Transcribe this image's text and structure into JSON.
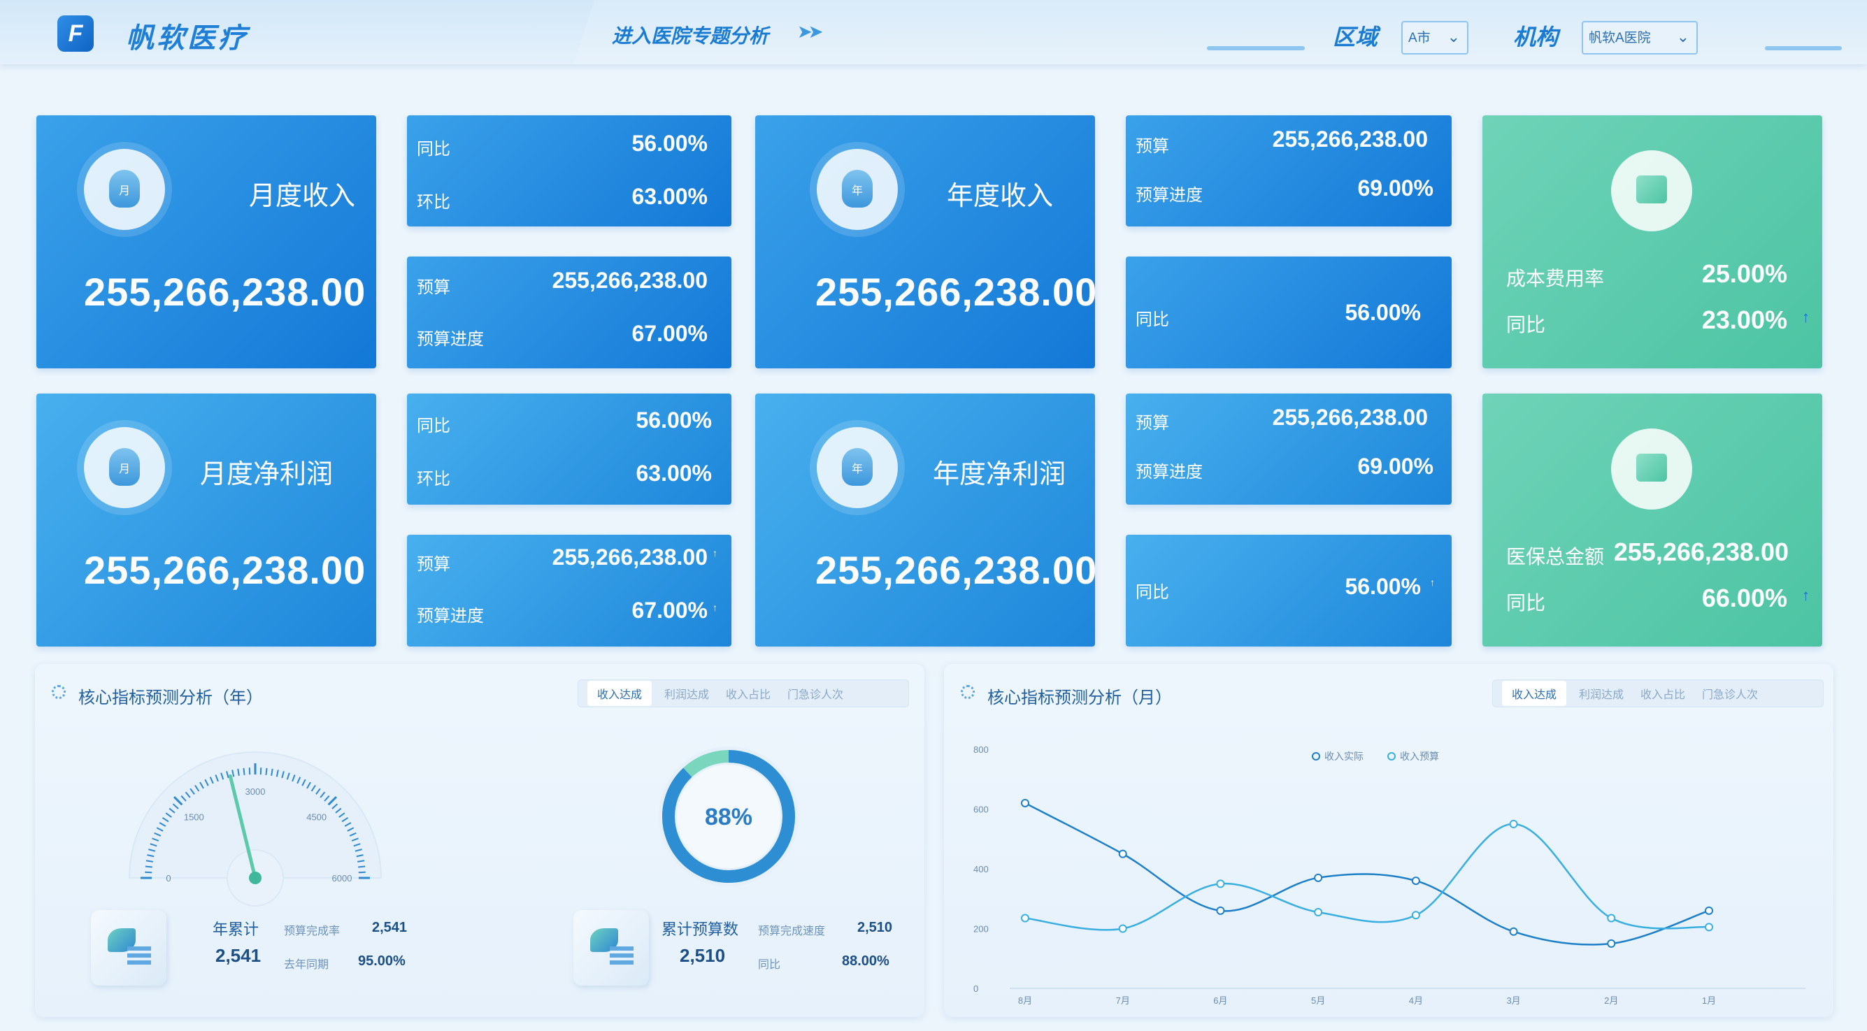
{
  "header": {
    "brand": "帆软医疗",
    "logo_letter": "F",
    "enter_link": "进入医院专题分析",
    "region_label": "区域",
    "region_value": "A市",
    "org_label": "机构",
    "org_value": "帆软A医院"
  },
  "cards": {
    "monthly_income": {
      "title": "月度收入",
      "icon_char": "月",
      "value": "255,266,238.00"
    },
    "monthly_income_cmp": {
      "yoy_label": "同比",
      "yoy": "56.00%",
      "mom_label": "环比",
      "mom": "63.00%"
    },
    "monthly_income_budget": {
      "budget_label": "预算",
      "budget": "255,266,238.00",
      "progress_label": "预算进度",
      "progress": "67.00%"
    },
    "annual_income": {
      "title": "年度收入",
      "icon_char": "年",
      "value": "255,266,238.00"
    },
    "annual_income_budget": {
      "budget_label": "预算",
      "budget": "255,266,238.00",
      "progress_label": "预算进度",
      "progress": "69.00%"
    },
    "annual_income_yoy": {
      "yoy_label": "同比",
      "yoy": "56.00%"
    },
    "cost_rate": {
      "label": "成本费用率",
      "value": "25.00%",
      "yoy_label": "同比",
      "yoy": "23.00%"
    },
    "monthly_profit": {
      "title": "月度净利润",
      "icon_char": "月",
      "value": "255,266,238.00"
    },
    "monthly_profit_cmp": {
      "yoy_label": "同比",
      "yoy": "56.00%",
      "mom_label": "环比",
      "mom": "63.00%"
    },
    "monthly_profit_budget": {
      "budget_label": "预算",
      "budget": "255,266,238.00",
      "progress_label": "预算进度",
      "progress": "67.00%"
    },
    "annual_profit": {
      "title": "年度净利润",
      "icon_char": "年",
      "value": "255,266,238.00"
    },
    "annual_profit_budget": {
      "budget_label": "预算",
      "budget": "255,266,238.00",
      "progress_label": "预算进度",
      "progress": "69.00%"
    },
    "annual_profit_yoy": {
      "yoy_label": "同比",
      "yoy": "56.00%"
    },
    "insurance": {
      "label": "医保总金额",
      "value": "255,266,238.00",
      "yoy_label": "同比",
      "yoy": "66.00%"
    },
    "up_arrow": "↑"
  },
  "panel_year": {
    "title": "核心指标预测分析（年）",
    "tabs": [
      "收入达成",
      "利润达成",
      "收入占比",
      "门急诊人次"
    ],
    "active_tab": 0,
    "gauge": {
      "ticks": [
        "0",
        "1500",
        "3000",
        "4500",
        "6000"
      ],
      "value": 2541,
      "max": 6000
    },
    "donut": {
      "value": 0.88,
      "label": "88%"
    },
    "kpi_left": {
      "label": "年累计",
      "value": "2,541",
      "sub1_label": "预算完成率",
      "sub1_value": "2,541",
      "sub2_label": "去年同期",
      "sub2_value": "95.00%"
    },
    "kpi_right": {
      "label": "累计预算数",
      "value": "2,510",
      "sub1_label": "预算完成速度",
      "sub1_value": "2,510",
      "sub2_label": "同比",
      "sub2_value": "88.00%"
    }
  },
  "panel_month": {
    "title": "核心指标预测分析（月）",
    "tabs": [
      "收入达成",
      "利润达成",
      "收入占比",
      "门急诊人次"
    ],
    "active_tab": 0
  },
  "chart_data": {
    "type": "line",
    "categories": [
      "8月",
      "7月",
      "6月",
      "5月",
      "4月",
      "3月",
      "2月",
      "1月"
    ],
    "series": [
      {
        "name": "收入实际",
        "values": [
          620,
          450,
          260,
          370,
          360,
          190,
          150,
          260
        ],
        "color": "#1c7fc8"
      },
      {
        "name": "收入预算",
        "values": [
          235,
          200,
          350,
          255,
          245,
          550,
          235,
          205
        ],
        "color": "#39aee0"
      }
    ],
    "ylim": [
      0,
      800
    ],
    "yticks": [
      "0",
      "200",
      "400",
      "600",
      "800"
    ],
    "legend": "top-center",
    "grid": false
  },
  "colors": {
    "primary": "#1378d6",
    "teal": "#4cc4a3",
    "bg": "#edf5fc"
  }
}
